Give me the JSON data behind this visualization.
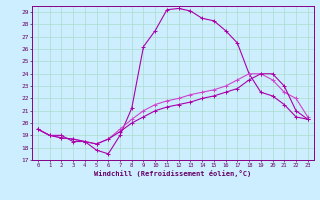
{
  "xlabel": "Windchill (Refroidissement éolien,°C)",
  "xlim": [
    -0.5,
    23.5
  ],
  "ylim": [
    17,
    29.5
  ],
  "xticks": [
    0,
    1,
    2,
    3,
    4,
    5,
    6,
    7,
    8,
    9,
    10,
    11,
    12,
    13,
    14,
    15,
    16,
    17,
    18,
    19,
    20,
    21,
    22,
    23
  ],
  "yticks": [
    17,
    18,
    19,
    20,
    21,
    22,
    23,
    24,
    25,
    26,
    27,
    28,
    29
  ],
  "background_color": "#cceeff",
  "grid_color": "#aaddcc",
  "line_color1": "#aa00aa",
  "line_color2": "#cc44cc",
  "line_color3": "#aa00aa",
  "series": [
    {
      "x": [
        0,
        1,
        2,
        3,
        4,
        5,
        6,
        7,
        8,
        9,
        10,
        11,
        12,
        13,
        14,
        15,
        16,
        17,
        18,
        19,
        20,
        21,
        22,
        23
      ],
      "y": [
        19.5,
        19.0,
        19.0,
        18.5,
        18.5,
        17.8,
        17.5,
        19.0,
        21.2,
        26.2,
        27.5,
        29.2,
        29.3,
        29.1,
        28.5,
        28.3,
        27.5,
        26.5,
        24.0,
        22.5,
        22.2,
        21.5,
        20.5,
        20.3
      ]
    },
    {
      "x": [
        0,
        1,
        2,
        3,
        4,
        5,
        6,
        7,
        8,
        9,
        10,
        11,
        12,
        13,
        14,
        15,
        16,
        17,
        18,
        19,
        20,
        21,
        22,
        23
      ],
      "y": [
        19.5,
        19.0,
        18.8,
        18.7,
        18.5,
        18.3,
        18.7,
        19.5,
        20.3,
        21.0,
        21.5,
        21.8,
        22.0,
        22.3,
        22.5,
        22.7,
        23.0,
        23.5,
        24.0,
        24.0,
        23.5,
        22.5,
        22.0,
        20.5
      ]
    },
    {
      "x": [
        0,
        1,
        2,
        3,
        4,
        5,
        6,
        7,
        8,
        9,
        10,
        11,
        12,
        13,
        14,
        15,
        16,
        17,
        18,
        19,
        20,
        21,
        22,
        23
      ],
      "y": [
        19.5,
        19.0,
        18.8,
        18.7,
        18.5,
        18.3,
        18.7,
        19.3,
        20.0,
        20.5,
        21.0,
        21.3,
        21.5,
        21.7,
        22.0,
        22.2,
        22.5,
        22.8,
        23.5,
        24.0,
        24.0,
        23.0,
        21.0,
        20.3
      ]
    }
  ]
}
